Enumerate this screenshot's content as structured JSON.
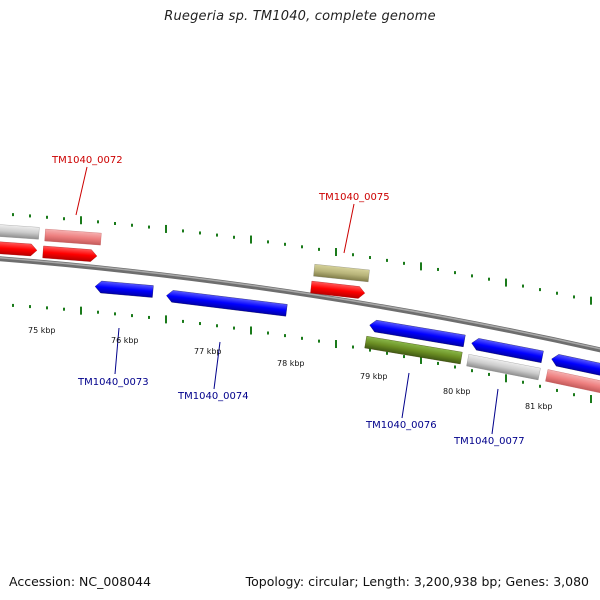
{
  "title": "Ruegeria sp. TM1040, complete genome",
  "footer": {
    "accession": "Accession: NC_008044",
    "topology": "Topology: circular; Length: 3,200,938 bp; Genes: 3,080"
  },
  "colors": {
    "forward_label": "#cc0000",
    "reverse_label": "#00008b",
    "tick": "#1a7a1a",
    "backbone": "#7a7a7a"
  },
  "kbp_labels": [
    "75 kbp",
    "76 kbp",
    "77 kbp",
    "78 kbp",
    "79 kbp",
    "80 kbp",
    "81 kbp"
  ],
  "gene_labels": {
    "g0072": "TM1040_0072",
    "g0075": "TM1040_0075",
    "g0073": "TM1040_0073",
    "g0074": "TM1040_0074",
    "g0076": "TM1040_0076",
    "g0077": "TM1040_0077"
  }
}
